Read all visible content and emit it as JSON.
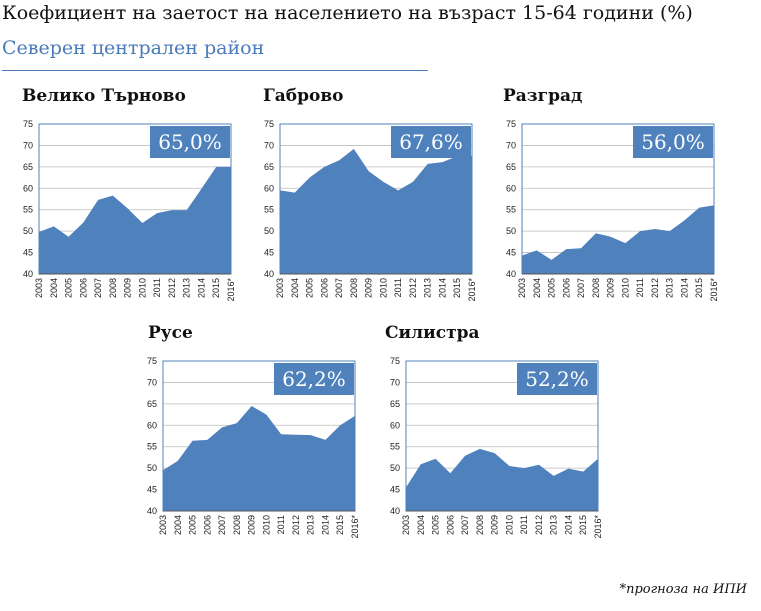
{
  "title": "Коефициент на заетост на населението на възраст 15-64 години (%)",
  "subtitle": "Северен централен район",
  "footnote": "*прогноза на ИПИ",
  "colors": {
    "fill": "#4f81bd",
    "border": "#4f81bd",
    "grid": "#bdbdbd",
    "label_bg": "#4f81bd",
    "subtitle": "#4a7ab8"
  },
  "chart_data": [
    {
      "type": "area",
      "title": "Велико Търново",
      "label": "65,0%",
      "x": [
        "2003",
        "2004",
        "2005",
        "2006",
        "2007",
        "2008",
        "2009",
        "2010",
        "2011",
        "2012",
        "2013",
        "2014",
        "2015",
        "2016*"
      ],
      "y": [
        49.8,
        51.1,
        48.7,
        52.0,
        57.3,
        58.3,
        55.3,
        51.9,
        54.2,
        54.9,
        54.9,
        59.9,
        65.0,
        65.0
      ],
      "yticks": [
        "40",
        "45",
        "50",
        "55",
        "60",
        "65",
        "70",
        "75"
      ],
      "ylim": [
        40,
        75
      ],
      "grid": true
    },
    {
      "type": "area",
      "title": "Габрово",
      "label": "67,6%",
      "x": [
        "2003",
        "2004",
        "2005",
        "2006",
        "2007",
        "2008",
        "2009",
        "2010",
        "2011",
        "2012",
        "2013",
        "2014",
        "2015",
        "2016*"
      ],
      "y": [
        59.5,
        59.0,
        62.5,
        65.0,
        66.5,
        69.2,
        64.0,
        61.5,
        59.5,
        61.5,
        65.7,
        66.1,
        67.5,
        67.6
      ],
      "yticks": [
        "40",
        "45",
        "50",
        "55",
        "60",
        "65",
        "70",
        "75"
      ],
      "ylim": [
        40,
        75
      ],
      "grid": true
    },
    {
      "type": "area",
      "title": "Разград",
      "label": "56,0%",
      "x": [
        "2003",
        "2004",
        "2005",
        "2006",
        "2007",
        "2008",
        "2009",
        "2010",
        "2011",
        "2012",
        "2013",
        "2014",
        "2015",
        "2016*"
      ],
      "y": [
        44.3,
        45.5,
        43.3,
        45.8,
        46.0,
        49.5,
        48.7,
        47.2,
        50.0,
        50.5,
        50.0,
        52.5,
        55.5,
        56.0
      ],
      "yticks": [
        "40",
        "45",
        "50",
        "55",
        "60",
        "65",
        "70",
        "75"
      ],
      "ylim": [
        40,
        75
      ],
      "grid": true
    },
    {
      "type": "area",
      "title": "Русе",
      "label": "62,2%",
      "x": [
        "2003",
        "2004",
        "2005",
        "2006",
        "2007",
        "2008",
        "2009",
        "2010",
        "2011",
        "2012",
        "2013",
        "2014",
        "2015",
        "2016*"
      ],
      "y": [
        49.5,
        51.7,
        56.4,
        56.6,
        59.5,
        60.5,
        64.5,
        62.5,
        57.9,
        57.8,
        57.7,
        56.6,
        60.0,
        62.2
      ],
      "yticks": [
        "40",
        "45",
        "50",
        "55",
        "60",
        "65",
        "70",
        "75"
      ],
      "ylim": [
        40,
        75
      ],
      "grid": true
    },
    {
      "type": "area",
      "title": "Силистра",
      "label": "52,2%",
      "x": [
        "2003",
        "2004",
        "2005",
        "2006",
        "2007",
        "2008",
        "2009",
        "2010",
        "2011",
        "2012",
        "2013",
        "2014",
        "2015",
        "2016*"
      ],
      "y": [
        45.5,
        50.9,
        52.2,
        48.8,
        52.9,
        54.5,
        53.5,
        50.5,
        50.0,
        50.8,
        48.2,
        49.9,
        49.2,
        52.2
      ],
      "yticks": [
        "40",
        "45",
        "50",
        "55",
        "60",
        "65",
        "70",
        "75"
      ],
      "ylim": [
        40,
        75
      ],
      "grid": true
    }
  ]
}
